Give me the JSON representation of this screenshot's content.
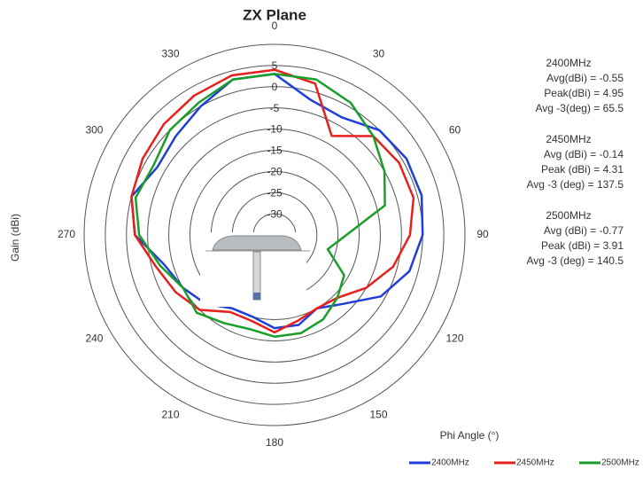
{
  "chart_data": {
    "type": "polar",
    "title": "ZX Plane",
    "rlabel": "Gain (dBi)",
    "thetalabel": "Phi Angle (°)",
    "rlim": [
      -35,
      10
    ],
    "rticks": [
      -30,
      -25,
      -20,
      -15,
      -10,
      -5,
      0,
      5
    ],
    "thetaticks": [
      0,
      30,
      60,
      90,
      120,
      150,
      180,
      210,
      240,
      270,
      300,
      330
    ],
    "theta": [
      0,
      15,
      30,
      45,
      60,
      75,
      90,
      105,
      120,
      135,
      150,
      165,
      180,
      195,
      210,
      225,
      240,
      255,
      270,
      285,
      300,
      315,
      330,
      345
    ],
    "series": [
      {
        "name": "2400MHz",
        "color": "#1f3fd8",
        "values": [
          3,
          -2,
          -3,
          0,
          1,
          1,
          0,
          -2,
          -6,
          -12,
          -15,
          -13,
          -13,
          -15,
          -15,
          -12,
          -10,
          -8,
          -2,
          0,
          -3,
          -2,
          0,
          3
        ]
      },
      {
        "name": "2450MHz",
        "color": "#e8201c",
        "values": [
          4,
          2,
          -8,
          -2,
          -1,
          -1,
          -3,
          -6,
          -10,
          -14,
          -15,
          -14,
          -12,
          -14,
          -14,
          -10,
          -8,
          -6,
          -2,
          0,
          1,
          2,
          3,
          4
        ]
      },
      {
        "name": "2500MHz",
        "color": "#1a9e2a",
        "values": [
          3,
          3,
          1,
          -2,
          -5,
          -8,
          -18,
          -22,
          -16,
          -14,
          -12,
          -11,
          -11,
          -12,
          -11,
          -9,
          -10,
          -7,
          -3,
          -1,
          -2,
          0,
          1,
          3
        ]
      }
    ],
    "annotations": [
      [
        "2400MHz",
        "Avg(dBi) = -0.55",
        "Peak(dBi) = 4.95",
        "Avg -3(deg) = 65.5"
      ],
      [
        "2450MHz",
        "Avg (dBi) = -0.14",
        "Peak (dBi) = 4.31",
        "Avg -3 (deg) = 137.5"
      ],
      [
        "2500MHz",
        "Avg (dBi) = -0.77",
        "Peak (dBi) = 3.91",
        "Avg -3 (deg) = 140.5"
      ]
    ]
  }
}
